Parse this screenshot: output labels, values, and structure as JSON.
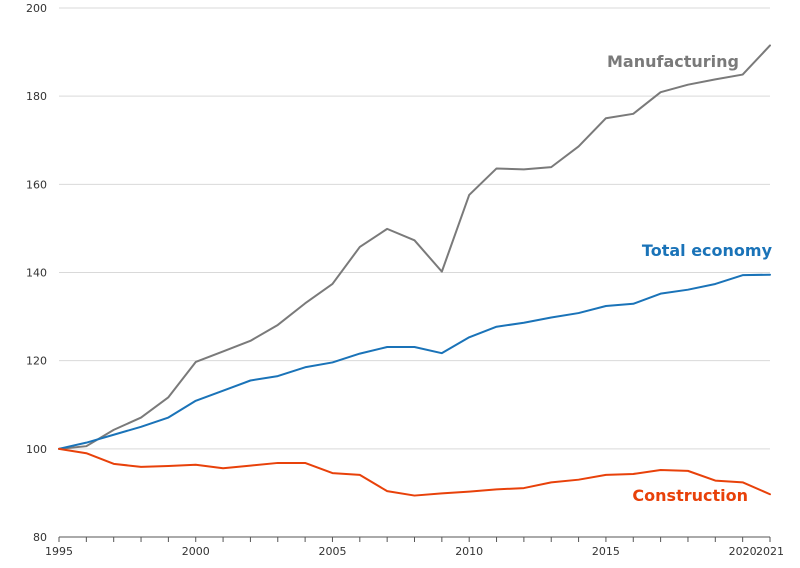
{
  "chart_data": {
    "type": "line",
    "x": [
      1995,
      1996,
      1997,
      1998,
      1999,
      2000,
      2001,
      2002,
      2003,
      2004,
      2005,
      2006,
      2007,
      2008,
      2009,
      2010,
      2011,
      2012,
      2013,
      2014,
      2015,
      2016,
      2017,
      2018,
      2019,
      2020,
      2021
    ],
    "xticks": [
      1995,
      2000,
      2005,
      2010,
      2015,
      2020,
      2021
    ],
    "xlim": [
      1995,
      2021
    ],
    "ylim": [
      80,
      200
    ],
    "yticks": [
      80,
      100,
      120,
      140,
      160,
      180,
      200
    ],
    "grid": "horizontal",
    "legend": "none",
    "series": [
      {
        "name": "Manufacturing",
        "color": "#7a7a7a",
        "label_color": "#7a7a7a",
        "values": [
          100,
          100.6,
          104.3,
          107.1,
          111.7,
          119.7,
          122.1,
          124.5,
          128.1,
          133.0,
          137.4,
          145.8,
          149.9,
          147.3,
          140.2,
          157.6,
          163.6,
          163.4,
          163.9,
          168.6,
          175.0,
          176.0,
          180.9,
          182.6,
          183.8,
          184.9,
          191.5
        ]
      },
      {
        "name": "Total economy",
        "color": "#1a73b8",
        "label_color": "#1a73b8",
        "values": [
          100,
          101.4,
          103.2,
          105.0,
          107.1,
          110.9,
          113.2,
          115.5,
          116.5,
          118.5,
          119.6,
          121.6,
          123.1,
          123.1,
          121.7,
          125.3,
          127.7,
          128.6,
          129.8,
          130.8,
          132.4,
          132.9,
          135.2,
          136.1,
          137.4,
          139.4,
          139.5
        ]
      },
      {
        "name": "Construction",
        "color": "#e8410a",
        "label_color": "#e8410a",
        "values": [
          100,
          99.0,
          96.6,
          95.9,
          96.1,
          96.4,
          95.6,
          96.2,
          96.8,
          96.8,
          94.5,
          94.1,
          90.4,
          89.4,
          89.9,
          90.3,
          90.8,
          91.1,
          92.4,
          93.0,
          94.1,
          94.3,
          95.2,
          95.0,
          92.8,
          92.4,
          89.7
        ]
      }
    ]
  }
}
